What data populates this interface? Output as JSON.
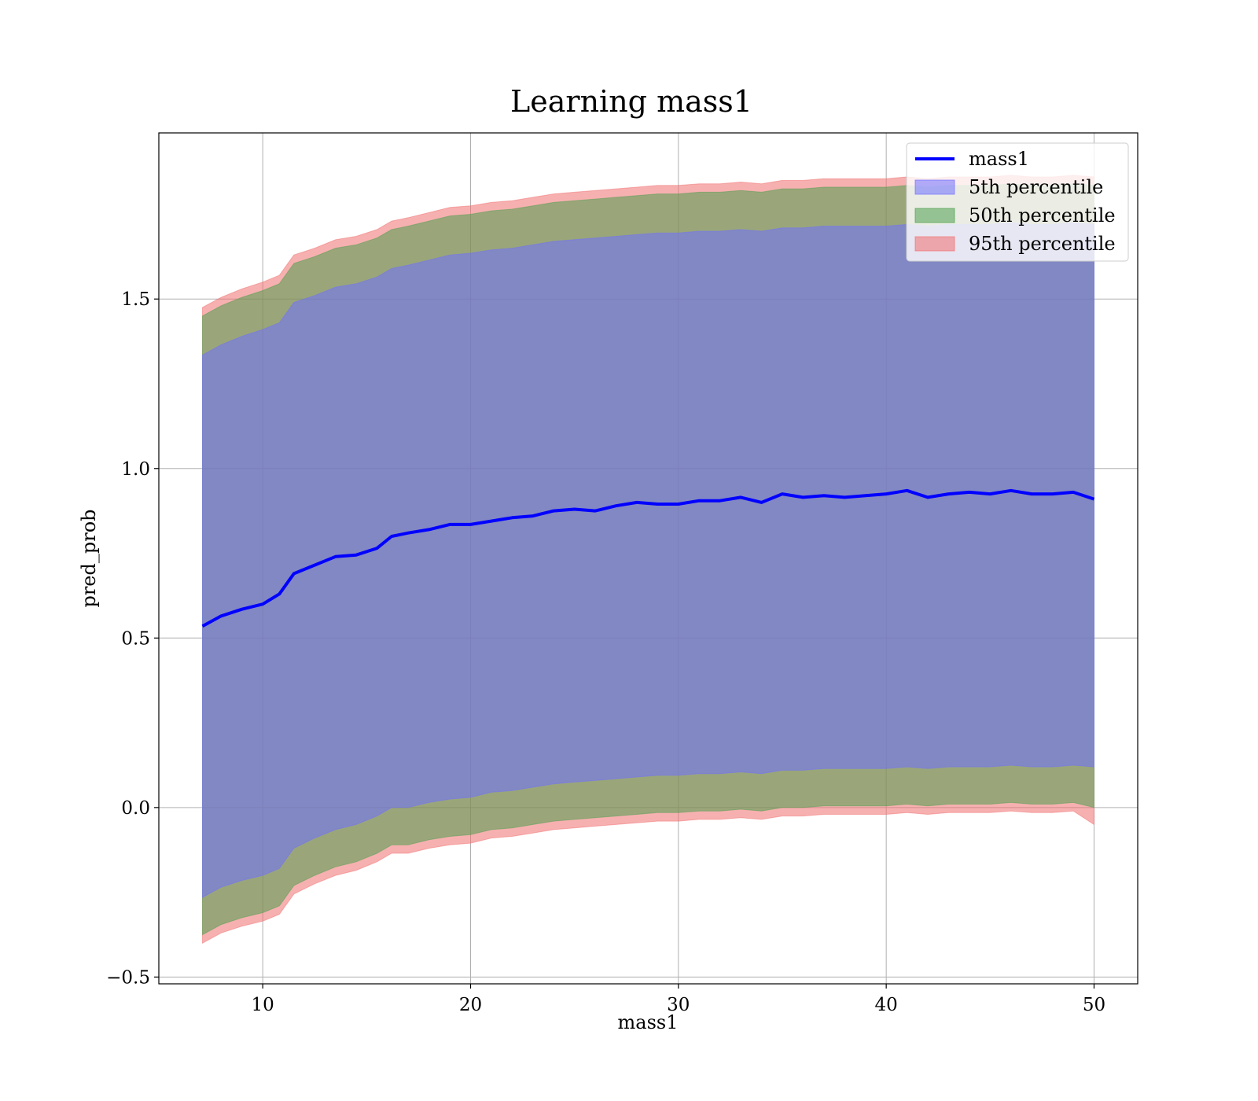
{
  "chart_data": {
    "type": "area",
    "title": "Learning mass1",
    "xlabel": "mass1",
    "ylabel": "pred_prob",
    "xlim": [
      5,
      52.1
    ],
    "ylim": [
      -0.52,
      1.99
    ],
    "x_ticks": [
      10,
      20,
      30,
      40,
      50
    ],
    "x_tick_labels": [
      "10",
      "20",
      "30",
      "40",
      "50"
    ],
    "y_ticks": [
      -0.5,
      0.0,
      0.5,
      1.0,
      1.5
    ],
    "y_tick_labels": [
      "−0.5",
      "0.0",
      "0.5",
      "1.0",
      "1.5"
    ],
    "grid": true,
    "legend_position": "top-right",
    "x": [
      7.1,
      8.0,
      9.0,
      10.0,
      10.8,
      11.5,
      12.5,
      13.5,
      14.5,
      15.5,
      16.2,
      17.0,
      18.0,
      19.0,
      20.0,
      21.0,
      22.0,
      23.0,
      24.0,
      25.0,
      26.0,
      27.0,
      28.0,
      29.0,
      30.0,
      31.0,
      32.0,
      33.0,
      34.0,
      35.0,
      36.0,
      37.0,
      38.0,
      39.0,
      40.0,
      41.0,
      42.0,
      43.0,
      44.0,
      45.0,
      46.0,
      47.0,
      48.0,
      49.0,
      50.0
    ],
    "series": [
      {
        "name": "mass1",
        "kind": "line",
        "color": "#0000ff",
        "values": [
          0.535,
          0.565,
          0.585,
          0.6,
          0.63,
          0.69,
          0.715,
          0.74,
          0.745,
          0.765,
          0.8,
          0.81,
          0.82,
          0.835,
          0.835,
          0.845,
          0.855,
          0.86,
          0.875,
          0.88,
          0.875,
          0.89,
          0.9,
          0.895,
          0.895,
          0.905,
          0.905,
          0.915,
          0.9,
          0.925,
          0.915,
          0.92,
          0.915,
          0.92,
          0.925,
          0.935,
          0.915,
          0.925,
          0.93,
          0.925,
          0.935,
          0.925,
          0.925,
          0.93,
          0.91
        ]
      },
      {
        "name": "5th percentile",
        "kind": "band",
        "color": "#6f6fff",
        "lower": [
          -0.265,
          -0.235,
          -0.215,
          -0.2,
          -0.18,
          -0.12,
          -0.09,
          -0.065,
          -0.05,
          -0.025,
          0.0,
          0.0,
          0.015,
          0.025,
          0.03,
          0.045,
          0.05,
          0.06,
          0.07,
          0.075,
          0.08,
          0.085,
          0.09,
          0.095,
          0.095,
          0.1,
          0.1,
          0.105,
          0.1,
          0.11,
          0.11,
          0.115,
          0.115,
          0.115,
          0.115,
          0.12,
          0.115,
          0.12,
          0.12,
          0.12,
          0.125,
          0.12,
          0.12,
          0.125,
          0.12
        ],
        "upper": [
          1.335,
          1.365,
          1.39,
          1.41,
          1.43,
          1.49,
          1.51,
          1.535,
          1.545,
          1.565,
          1.59,
          1.6,
          1.615,
          1.63,
          1.635,
          1.645,
          1.65,
          1.66,
          1.67,
          1.675,
          1.68,
          1.685,
          1.69,
          1.695,
          1.695,
          1.7,
          1.7,
          1.705,
          1.7,
          1.71,
          1.71,
          1.715,
          1.715,
          1.715,
          1.715,
          1.72,
          1.715,
          1.72,
          1.72,
          1.72,
          1.725,
          1.72,
          1.72,
          1.725,
          1.72
        ]
      },
      {
        "name": "50th percentile",
        "kind": "band",
        "color": "#4f9f4f",
        "lower": [
          -0.375,
          -0.345,
          -0.325,
          -0.31,
          -0.29,
          -0.23,
          -0.2,
          -0.175,
          -0.16,
          -0.135,
          -0.11,
          -0.11,
          -0.095,
          -0.085,
          -0.08,
          -0.065,
          -0.06,
          -0.05,
          -0.04,
          -0.035,
          -0.03,
          -0.025,
          -0.02,
          -0.015,
          -0.015,
          -0.01,
          -0.01,
          -0.005,
          -0.01,
          0.0,
          0.0,
          0.005,
          0.005,
          0.005,
          0.005,
          0.01,
          0.005,
          0.01,
          0.01,
          0.01,
          0.015,
          0.01,
          0.01,
          0.015,
          0.0
        ],
        "upper": [
          1.45,
          1.48,
          1.505,
          1.525,
          1.545,
          1.605,
          1.625,
          1.65,
          1.66,
          1.68,
          1.705,
          1.715,
          1.73,
          1.745,
          1.75,
          1.76,
          1.765,
          1.775,
          1.785,
          1.79,
          1.795,
          1.8,
          1.805,
          1.81,
          1.81,
          1.815,
          1.815,
          1.82,
          1.815,
          1.825,
          1.825,
          1.83,
          1.83,
          1.83,
          1.83,
          1.835,
          1.83,
          1.835,
          1.835,
          1.835,
          1.84,
          1.835,
          1.835,
          1.84,
          1.835
        ]
      },
      {
        "name": "95th percentile",
        "kind": "band",
        "color": "#f07070",
        "lower": [
          -0.4,
          -0.37,
          -0.35,
          -0.335,
          -0.315,
          -0.255,
          -0.225,
          -0.2,
          -0.185,
          -0.16,
          -0.135,
          -0.135,
          -0.12,
          -0.11,
          -0.105,
          -0.09,
          -0.085,
          -0.075,
          -0.065,
          -0.06,
          -0.055,
          -0.05,
          -0.045,
          -0.04,
          -0.04,
          -0.035,
          -0.035,
          -0.03,
          -0.035,
          -0.025,
          -0.025,
          -0.02,
          -0.02,
          -0.02,
          -0.02,
          -0.015,
          -0.02,
          -0.015,
          -0.015,
          -0.015,
          -0.01,
          -0.015,
          -0.015,
          -0.01,
          -0.05
        ],
        "upper": [
          1.475,
          1.505,
          1.53,
          1.55,
          1.57,
          1.63,
          1.65,
          1.675,
          1.685,
          1.705,
          1.73,
          1.74,
          1.755,
          1.77,
          1.775,
          1.785,
          1.79,
          1.8,
          1.81,
          1.815,
          1.82,
          1.825,
          1.83,
          1.835,
          1.835,
          1.84,
          1.84,
          1.845,
          1.84,
          1.85,
          1.85,
          1.855,
          1.855,
          1.855,
          1.855,
          1.86,
          1.855,
          1.86,
          1.86,
          1.86,
          1.865,
          1.86,
          1.86,
          1.865,
          1.86
        ]
      }
    ]
  }
}
